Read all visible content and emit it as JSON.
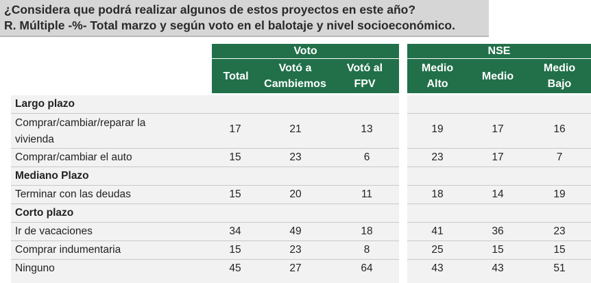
{
  "title": {
    "line1": "¿Considera que podrá realizar algunos de estos proyectos en este año?",
    "line2": "R. Múltiple -%- Total marzo y según voto en el balotaje y nivel socioeconómico."
  },
  "table_left": {
    "group_label": "Voto",
    "columns": [
      "Total",
      "Votó a\nCambiemos",
      "Votó al\nFPV"
    ]
  },
  "table_right": {
    "group_label": "NSE",
    "columns": [
      "Medio\nAlto",
      "Medio",
      "Medio\nBajo"
    ]
  },
  "rows": [
    {
      "type": "section",
      "label": "Largo plazo"
    },
    {
      "type": "item",
      "label": "Comprar/cambiar/reparar la\nvivienda",
      "values": [
        "17",
        "21",
        "13"
      ],
      "nse": [
        "19",
        "17",
        "16"
      ]
    },
    {
      "type": "item",
      "label": "Comprar/cambiar el auto",
      "values": [
        "15",
        "23",
        "6"
      ],
      "nse": [
        "23",
        "17",
        "7"
      ]
    },
    {
      "type": "section",
      "label": "Mediano Plazo"
    },
    {
      "type": "item",
      "label": "Terminar con las deudas",
      "values": [
        "15",
        "20",
        "11"
      ],
      "nse": [
        "18",
        "14",
        "19"
      ]
    },
    {
      "type": "section",
      "label": "Corto plazo"
    },
    {
      "type": "item",
      "label": "Ir de vacaciones",
      "values": [
        "34",
        "49",
        "18"
      ],
      "nse": [
        "41",
        "36",
        "23"
      ]
    },
    {
      "type": "item",
      "label": "Comprar indumentaria",
      "values": [
        "15",
        "23",
        "8"
      ],
      "nse": [
        "25",
        "15",
        "15"
      ]
    },
    {
      "type": "item",
      "label": "Ninguno",
      "values": [
        "45",
        "27",
        "64"
      ],
      "nse": [
        "43",
        "43",
        "51"
      ]
    }
  ]
}
